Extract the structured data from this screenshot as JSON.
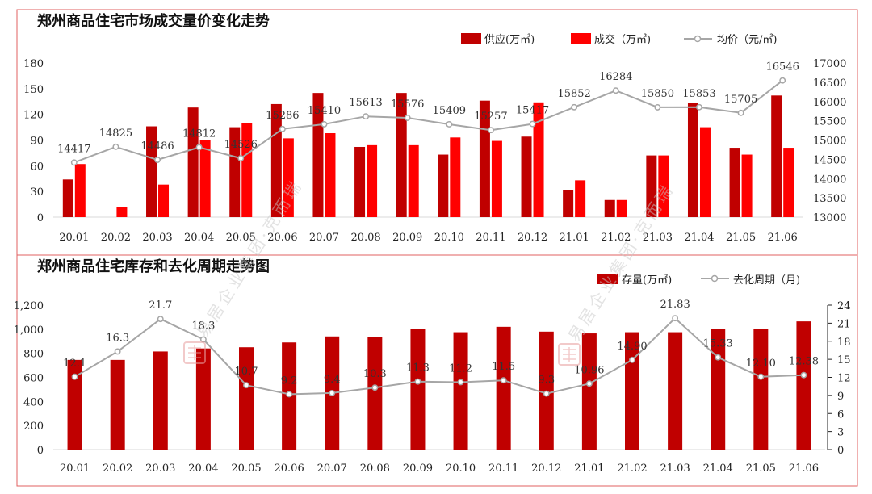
{
  "chart_data": [
    {
      "type": "bar",
      "title": "郑州商品住宅市场成交量价变化走势",
      "categories": [
        "20.01",
        "20.02",
        "20.03",
        "20.04",
        "20.05",
        "20.06",
        "20.07",
        "20.08",
        "20.09",
        "20.10",
        "20.11",
        "20.12",
        "21.01",
        "21.02",
        "21.03",
        "21.04",
        "21.05",
        "21.06"
      ],
      "series": [
        {
          "name": "供应(万㎡)",
          "kind": "bar",
          "axis": "left",
          "color": "#c00000",
          "values": [
            44,
            0,
            106,
            128,
            105,
            132,
            145,
            82,
            145,
            73,
            136,
            94,
            32,
            20,
            72,
            133,
            81,
            142
          ]
        },
        {
          "name": "成交（万㎡)",
          "kind": "bar",
          "axis": "left",
          "color": "#ff0000",
          "values": [
            62,
            12,
            38,
            90,
            110,
            92,
            98,
            84,
            84,
            93,
            89,
            134,
            43,
            20,
            72,
            105,
            73,
            81
          ]
        },
        {
          "name": "均价（元/㎡)",
          "kind": "line",
          "axis": "right",
          "color": "#a6a6a6",
          "values": [
            14417,
            14825,
            14486,
            14812,
            14526,
            15286,
            15410,
            15613,
            15576,
            15409,
            15257,
            15417,
            15852,
            16284,
            15850,
            15853,
            15705,
            16546
          ],
          "labels": [
            "14417",
            "14825",
            "14486",
            "14812",
            "14526",
            "15286",
            "15410",
            "15613",
            "15576",
            "15409",
            "15257",
            "15417",
            "15852",
            "16284",
            "15850",
            "15853",
            "15705",
            "16546"
          ]
        }
      ],
      "yticks_left": [
        "0",
        "30",
        "60",
        "90",
        "120",
        "150",
        "180"
      ],
      "ylim_left": [
        0,
        180
      ],
      "yticks_right": [
        "13000",
        "13500",
        "14000",
        "14500",
        "15000",
        "15500",
        "16000",
        "16500",
        "17000"
      ],
      "ylim_right": [
        13000,
        17000
      ],
      "grid": false,
      "legend": "top-right"
    },
    {
      "type": "bar",
      "title": "郑州商品住宅库存和去化周期走势图",
      "categories": [
        "20.01",
        "20.02",
        "20.03",
        "20.04",
        "20.05",
        "20.06",
        "20.07",
        "20.08",
        "20.09",
        "20.10",
        "20.11",
        "20.12",
        "21.01",
        "21.02",
        "21.03",
        "21.04",
        "21.05",
        "21.06"
      ],
      "series": [
        {
          "name": "存量(万㎡)",
          "kind": "bar",
          "axis": "left",
          "color": "#c00000",
          "values": [
            745,
            745,
            815,
            840,
            850,
            890,
            940,
            935,
            1000,
            975,
            1020,
            980,
            965,
            975,
            975,
            1005,
            1005,
            1065
          ]
        },
        {
          "name": "去化周期（月)",
          "kind": "line",
          "axis": "right",
          "color": "#a6a6a6",
          "values": [
            12.1,
            16.3,
            21.7,
            18.3,
            10.7,
            9.2,
            9.4,
            10.3,
            11.3,
            11.2,
            11.5,
            9.3,
            10.96,
            14.9,
            21.83,
            15.33,
            12.1,
            12.38
          ],
          "labels": [
            "12.1",
            "16.3",
            "21.7",
            "18.3",
            "10.7",
            "9.2",
            "9.4",
            "10.3",
            "11.3",
            "11.2",
            "11.5",
            "9.3",
            "10.96",
            "14.90",
            "21.83",
            "15.33",
            "12.10",
            "12.38"
          ]
        }
      ],
      "yticks_left": [
        "0",
        "200",
        "400",
        "600",
        "800",
        "1,000",
        "1,200"
      ],
      "ylim_left": [
        0,
        1200
      ],
      "yticks_right": [
        "0",
        "3",
        "6",
        "9",
        "12",
        "15",
        "18",
        "21",
        "24"
      ],
      "ylim_right": [
        0,
        24
      ],
      "grid": false,
      "legend": "top-right"
    }
  ],
  "colors": {
    "frame": "#e06060",
    "line": "#a6a6a6",
    "supply": "#c00000",
    "deal": "#ff0000",
    "stamp": "#e8a0a0"
  },
  "watermark": {
    "text": "易居企业集团·克而瑞",
    "stamp_icon": "seal-stamp-icon"
  }
}
